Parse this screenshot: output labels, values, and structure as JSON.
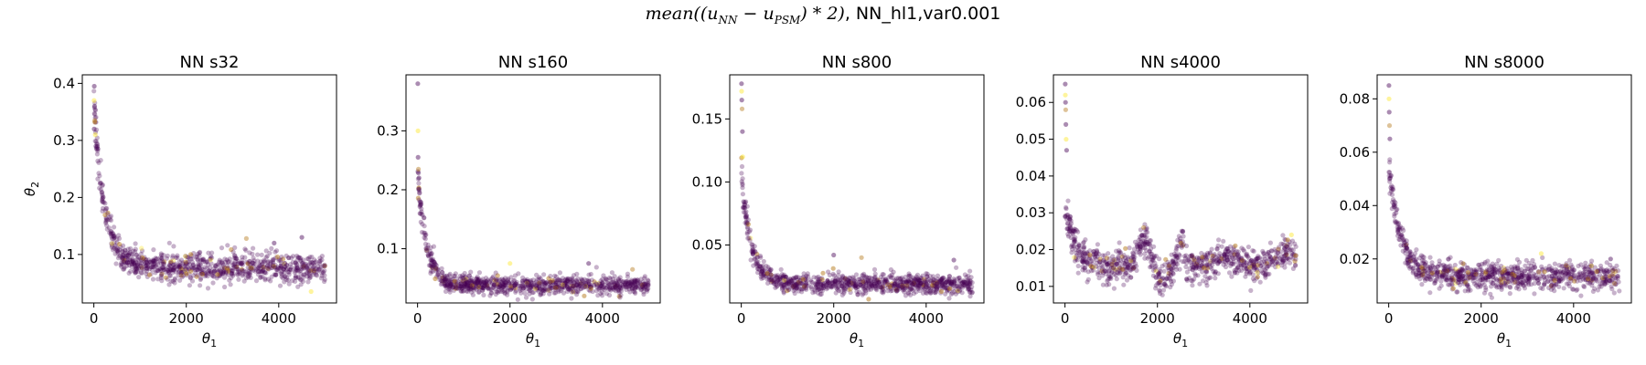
{
  "figure": {
    "suptitle_prefix": "mean((u",
    "suptitle_sub1": "NN",
    "suptitle_mid": " − u",
    "suptitle_sub2": "PSM",
    "suptitle_tail": ") * 2)",
    "suptitle_suffix": ", NN_hl1,var0.001"
  },
  "colors": {
    "point_main": "#440154",
    "point_mid": "#b5791c",
    "point_high": "#fde725",
    "axes": "#000000"
  },
  "chart_data": [
    {
      "type": "scatter",
      "title": "NN s32",
      "xlabel": "θ1",
      "ylabel": "θ2",
      "xlim": [
        -250,
        5250
      ],
      "ylim": [
        0.015,
        0.415
      ],
      "xticks": [
        0,
        2000,
        4000
      ],
      "yticks": [
        0.1,
        0.2,
        0.3,
        0.4
      ],
      "ytick_labels": [
        "0.1",
        "0.2",
        "0.3",
        "0.4"
      ],
      "trend": {
        "decay_start": 0.29,
        "plateau": 0.078,
        "tau": 230,
        "noise": 0.012
      },
      "bumps": [],
      "outliers": [
        [
          10,
          0.395
        ],
        [
          5,
          0.37
        ],
        [
          15,
          0.36
        ],
        [
          20,
          0.335
        ],
        [
          8,
          0.32
        ],
        [
          30,
          0.31
        ],
        [
          45,
          0.29
        ],
        [
          3300,
          0.128
        ],
        [
          4500,
          0.13
        ],
        [
          4700,
          0.035
        ],
        [
          3900,
          0.12
        ]
      ],
      "grid": false,
      "legend": "none"
    },
    {
      "type": "scatter",
      "title": "NN s160",
      "xlabel": "θ1",
      "ylabel": "",
      "xlim": [
        -250,
        5250
      ],
      "ylim": [
        0.008,
        0.395
      ],
      "xticks": [
        0,
        2000,
        4000
      ],
      "yticks": [
        0.1,
        0.2,
        0.3
      ],
      "ytick_labels": [
        "0.1",
        "0.2",
        "0.3"
      ],
      "trend": {
        "decay_start": 0.18,
        "plateau": 0.038,
        "tau": 200,
        "noise": 0.008
      },
      "bumps": [],
      "outliers": [
        [
          5,
          0.38
        ],
        [
          10,
          0.3
        ],
        [
          12,
          0.255
        ],
        [
          20,
          0.235
        ],
        [
          30,
          0.22
        ],
        [
          2000,
          0.075
        ],
        [
          3700,
          0.075
        ],
        [
          4650,
          0.065
        ]
      ],
      "grid": false,
      "legend": "none"
    },
    {
      "type": "scatter",
      "title": "NN s800",
      "xlabel": "θ1",
      "ylabel": "",
      "xlim": [
        -250,
        5250
      ],
      "ylim": [
        0.004,
        0.185
      ],
      "xticks": [
        0,
        2000,
        4000
      ],
      "yticks": [
        0.05,
        0.1,
        0.15
      ],
      "ytick_labels": [
        "0.05",
        "0.10",
        "0.15"
      ],
      "trend": {
        "decay_start": 0.085,
        "plateau": 0.019,
        "tau": 220,
        "noise": 0.004
      },
      "bumps": [],
      "outliers": [
        [
          5,
          0.178
        ],
        [
          8,
          0.172
        ],
        [
          12,
          0.165
        ],
        [
          18,
          0.158
        ],
        [
          25,
          0.14
        ],
        [
          30,
          0.12
        ],
        [
          2000,
          0.042
        ],
        [
          2600,
          0.04
        ],
        [
          4600,
          0.038
        ]
      ],
      "grid": false,
      "legend": "none"
    },
    {
      "type": "scatter",
      "title": "NN s4000",
      "xlabel": "θ1",
      "ylabel": "",
      "xlim": [
        -250,
        5250
      ],
      "ylim": [
        0.0055,
        0.0675
      ],
      "xticks": [
        0,
        2000,
        4000
      ],
      "yticks": [
        0.01,
        0.02,
        0.03,
        0.04,
        0.05,
        0.06
      ],
      "ytick_labels": [
        "0.01",
        "0.02",
        "0.03",
        "0.04",
        "0.05",
        "0.06"
      ],
      "trend": {
        "decay_start": 0.017,
        "plateau": 0.0155,
        "tau": 200,
        "noise": 0.0022
      },
      "bumps": [
        [
          1700,
          180,
          0.007
        ],
        [
          2100,
          120,
          -0.005
        ],
        [
          2500,
          110,
          0.005
        ],
        [
          3500,
          300,
          0.003
        ],
        [
          4800,
          250,
          0.004
        ]
      ],
      "outliers": [
        [
          5,
          0.065
        ],
        [
          8,
          0.062
        ],
        [
          12,
          0.06
        ],
        [
          15,
          0.058
        ],
        [
          20,
          0.054
        ],
        [
          25,
          0.05
        ],
        [
          35,
          0.047
        ],
        [
          1700,
          0.026
        ],
        [
          2550,
          0.025
        ],
        [
          4900,
          0.024
        ]
      ],
      "grid": false,
      "legend": "none"
    },
    {
      "type": "scatter",
      "title": "NN s8000",
      "xlabel": "θ1",
      "ylabel": "",
      "xlim": [
        -250,
        5250
      ],
      "ylim": [
        0.0035,
        0.089
      ],
      "xticks": [
        0,
        2000,
        4000
      ],
      "yticks": [
        0.02,
        0.04,
        0.06,
        0.08
      ],
      "ytick_labels": [
        "0.02",
        "0.04",
        "0.06",
        "0.08"
      ],
      "trend": {
        "decay_start": 0.042,
        "plateau": 0.0135,
        "tau": 260,
        "noise": 0.0025
      },
      "bumps": [],
      "outliers": [
        [
          5,
          0.085
        ],
        [
          8,
          0.08
        ],
        [
          12,
          0.075
        ],
        [
          18,
          0.07
        ],
        [
          25,
          0.065
        ],
        [
          3300,
          0.022
        ],
        [
          4800,
          0.02
        ]
      ],
      "grid": false,
      "legend": "none"
    }
  ]
}
